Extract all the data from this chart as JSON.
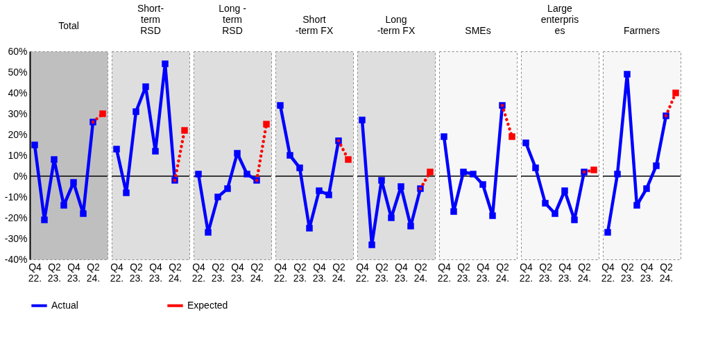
{
  "chart_data": [
    {
      "type": "line",
      "title": "Total",
      "categories": [
        "Q4\n22.",
        null,
        "Q2\n23.",
        null,
        "Q4\n23.",
        null,
        "Q2\n24.",
        null
      ],
      "ylim": [
        -40,
        60
      ],
      "yticks": [
        {
          "value": -40,
          "label": "-40%"
        },
        {
          "value": -30,
          "label": "-30%"
        },
        {
          "value": -20,
          "label": "-20%"
        },
        {
          "value": -10,
          "label": "-10%"
        },
        {
          "value": 0,
          "label": "0%"
        },
        {
          "value": 10,
          "label": "10%"
        },
        {
          "value": 20,
          "label": "20%"
        },
        {
          "value": 30,
          "label": "30%"
        },
        {
          "value": 40,
          "label": "40%"
        },
        {
          "value": 50,
          "label": "50%"
        },
        {
          "value": 60,
          "label": "60%"
        }
      ],
      "grid": false,
      "legend": "bottom",
      "marker": "square",
      "ref_lines": [
        {
          "axis": "y",
          "value": 0,
          "color": "#000000"
        }
      ],
      "series": [
        {
          "name": "Actual",
          "color": "#0000ff",
          "line_style": "solid",
          "values": [
            15,
            -21,
            8,
            -14,
            -3,
            -18,
            26,
            null
          ]
        },
        {
          "name": "Expected",
          "color": "#ff0000",
          "line_style": "dotted",
          "values": [
            null,
            null,
            null,
            null,
            null,
            null,
            26,
            30
          ]
        }
      ]
    },
    {
      "type": "line",
      "title": "Short-\nterm\nRSD",
      "categories": [
        "Q4\n22.",
        null,
        "Q2\n23.",
        null,
        "Q4\n23.",
        null,
        "Q2\n24.",
        null
      ],
      "ylim": [
        -40,
        60
      ],
      "tick_labels": "x",
      "grid": false,
      "legend": "bottom",
      "marker": "square",
      "ref_lines": [
        {
          "axis": "y",
          "value": 0,
          "color": "#000000"
        }
      ],
      "series": [
        {
          "name": "Actual",
          "color": "#0000ff",
          "line_style": "solid",
          "values": [
            13,
            -8,
            31,
            43,
            12,
            54,
            -2,
            null
          ]
        },
        {
          "name": "Expected",
          "color": "#ff0000",
          "line_style": "dotted",
          "values": [
            null,
            null,
            null,
            null,
            null,
            null,
            -2,
            22
          ]
        }
      ]
    },
    {
      "type": "line",
      "title": "Long -\nterm\nRSD",
      "categories": [
        "Q4\n22.",
        null,
        "Q2\n23.",
        null,
        "Q4\n23.",
        null,
        "Q2\n24.",
        null
      ],
      "ylim": [
        -40,
        60
      ],
      "tick_labels": "x",
      "grid": false,
      "legend": "bottom",
      "marker": "square",
      "ref_lines": [
        {
          "axis": "y",
          "value": 0,
          "color": "#000000"
        }
      ],
      "series": [
        {
          "name": "Actual",
          "color": "#0000ff",
          "line_style": "solid",
          "values": [
            1,
            -27,
            -10,
            -6,
            11,
            1,
            -2,
            null
          ]
        },
        {
          "name": "Expected",
          "color": "#ff0000",
          "line_style": "dotted",
          "values": [
            null,
            null,
            null,
            null,
            null,
            null,
            -2,
            25
          ]
        }
      ]
    },
    {
      "type": "line",
      "title": "Short\n-term FX",
      "categories": [
        "Q4\n22.",
        null,
        "Q2\n23.",
        null,
        "Q4\n23.",
        null,
        "Q2\n24.",
        null
      ],
      "ylim": [
        -40,
        60
      ],
      "tick_labels": "x",
      "grid": false,
      "legend": "bottom",
      "marker": "square",
      "ref_lines": [
        {
          "axis": "y",
          "value": 0,
          "color": "#000000"
        }
      ],
      "series": [
        {
          "name": "Actual",
          "color": "#0000ff",
          "line_style": "solid",
          "values": [
            34,
            10,
            4,
            -25,
            -7,
            -9,
            17,
            null
          ]
        },
        {
          "name": "Expected",
          "color": "#ff0000",
          "line_style": "dotted",
          "values": [
            null,
            null,
            null,
            null,
            null,
            null,
            17,
            8
          ]
        }
      ]
    },
    {
      "type": "line",
      "title": "Long\n-term FX",
      "categories": [
        "Q4\n22.",
        null,
        "Q2\n23.",
        null,
        "Q4\n23.",
        null,
        "Q2\n24.",
        null
      ],
      "ylim": [
        -40,
        60
      ],
      "tick_labels": "x",
      "grid": false,
      "legend": "bottom",
      "marker": "square",
      "ref_lines": [
        {
          "axis": "y",
          "value": 0,
          "color": "#000000"
        }
      ],
      "series": [
        {
          "name": "Actual",
          "color": "#0000ff",
          "line_style": "solid",
          "values": [
            27,
            -33,
            -2,
            -20,
            -5,
            -24,
            -6,
            null
          ]
        },
        {
          "name": "Expected",
          "color": "#ff0000",
          "line_style": "dotted",
          "values": [
            null,
            null,
            null,
            null,
            null,
            null,
            -6,
            2
          ]
        }
      ]
    },
    {
      "type": "line",
      "title": "SMEs",
      "categories": [
        "Q4\n22.",
        null,
        "Q2\n23.",
        null,
        "Q4\n23.",
        null,
        "Q2\n24.",
        null
      ],
      "ylim": [
        -40,
        60
      ],
      "tick_labels": "x",
      "grid": false,
      "legend": "bottom",
      "marker": "square",
      "ref_lines": [
        {
          "axis": "y",
          "value": 0,
          "color": "#000000"
        }
      ],
      "series": [
        {
          "name": "Actual",
          "color": "#0000ff",
          "line_style": "solid",
          "values": [
            19,
            -17,
            2,
            1,
            -4,
            -19,
            34,
            null
          ]
        },
        {
          "name": "Expected",
          "color": "#ff0000",
          "line_style": "dotted",
          "values": [
            null,
            null,
            null,
            null,
            null,
            null,
            34,
            19
          ]
        }
      ]
    },
    {
      "type": "line",
      "title": "Large\nenterpris\nes",
      "categories": [
        "Q4\n22.",
        null,
        "Q2\n23.",
        null,
        "Q4\n23.",
        null,
        "Q2\n24.",
        null
      ],
      "ylim": [
        -40,
        60
      ],
      "tick_labels": "x",
      "grid": false,
      "legend": "bottom",
      "marker": "square",
      "ref_lines": [
        {
          "axis": "y",
          "value": 0,
          "color": "#000000"
        }
      ],
      "series": [
        {
          "name": "Actual",
          "color": "#0000ff",
          "line_style": "solid",
          "values": [
            16,
            4,
            -13,
            -18,
            -7,
            -21,
            2,
            null
          ]
        },
        {
          "name": "Expected",
          "color": "#ff0000",
          "line_style": "dotted",
          "values": [
            null,
            null,
            null,
            null,
            null,
            null,
            2,
            3
          ]
        }
      ]
    },
    {
      "type": "line",
      "title": "Farmers",
      "categories": [
        "Q4\n22.",
        null,
        "Q2\n23.",
        null,
        "Q4\n23.",
        null,
        "Q2\n24.",
        null
      ],
      "ylim": [
        -40,
        60
      ],
      "tick_labels": "x",
      "grid": false,
      "legend": "bottom",
      "marker": "square",
      "ref_lines": [
        {
          "axis": "y",
          "value": 0,
          "color": "#000000"
        }
      ],
      "series": [
        {
          "name": "Actual",
          "color": "#0000ff",
          "line_style": "solid",
          "values": [
            -27,
            1,
            49,
            -14,
            -6,
            5,
            29,
            null
          ]
        },
        {
          "name": "Expected",
          "color": "#ff0000",
          "line_style": "dotted",
          "values": [
            null,
            null,
            null,
            null,
            null,
            null,
            29,
            40
          ]
        }
      ]
    }
  ]
}
